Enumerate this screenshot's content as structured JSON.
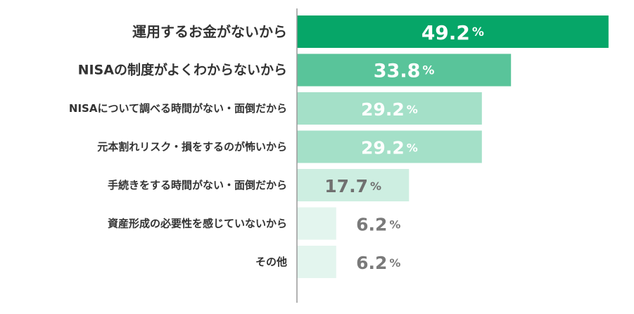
{
  "chart_data": {
    "type": "bar",
    "orientation": "horizontal",
    "unit": "%",
    "categories": [
      "運用するお金がないから",
      "NISAの制度がよくわからないから",
      "NISAについて調べる時間がない・面倒だから",
      "元本割れリスク・損をするのが怖いから",
      "手続きをする時間がない・面倒だから",
      "資産形成の必要性を感じていないから",
      "その他"
    ],
    "values": [
      49.2,
      33.8,
      29.2,
      29.2,
      17.7,
      6.2,
      6.2
    ],
    "value_labels": [
      "49.2",
      "33.8",
      "29.2",
      "29.2",
      "17.7",
      "6.2",
      "6.2"
    ],
    "xlim": [
      0,
      50
    ],
    "title": "",
    "xlabel": "",
    "ylabel": "",
    "grid": false,
    "legend": "none",
    "bar_colors": [
      "#06a668",
      "#59c49a",
      "#a4e0c8",
      "#a4e0c8",
      "#cdeee1",
      "#e3f5ee",
      "#e3f5ee"
    ],
    "label_colors": [
      "#ffffff",
      "#ffffff",
      "#ffffff",
      "#ffffff",
      "#707070",
      "#7a7a7a",
      "#7a7a7a"
    ],
    "axis_color": "#999999"
  }
}
